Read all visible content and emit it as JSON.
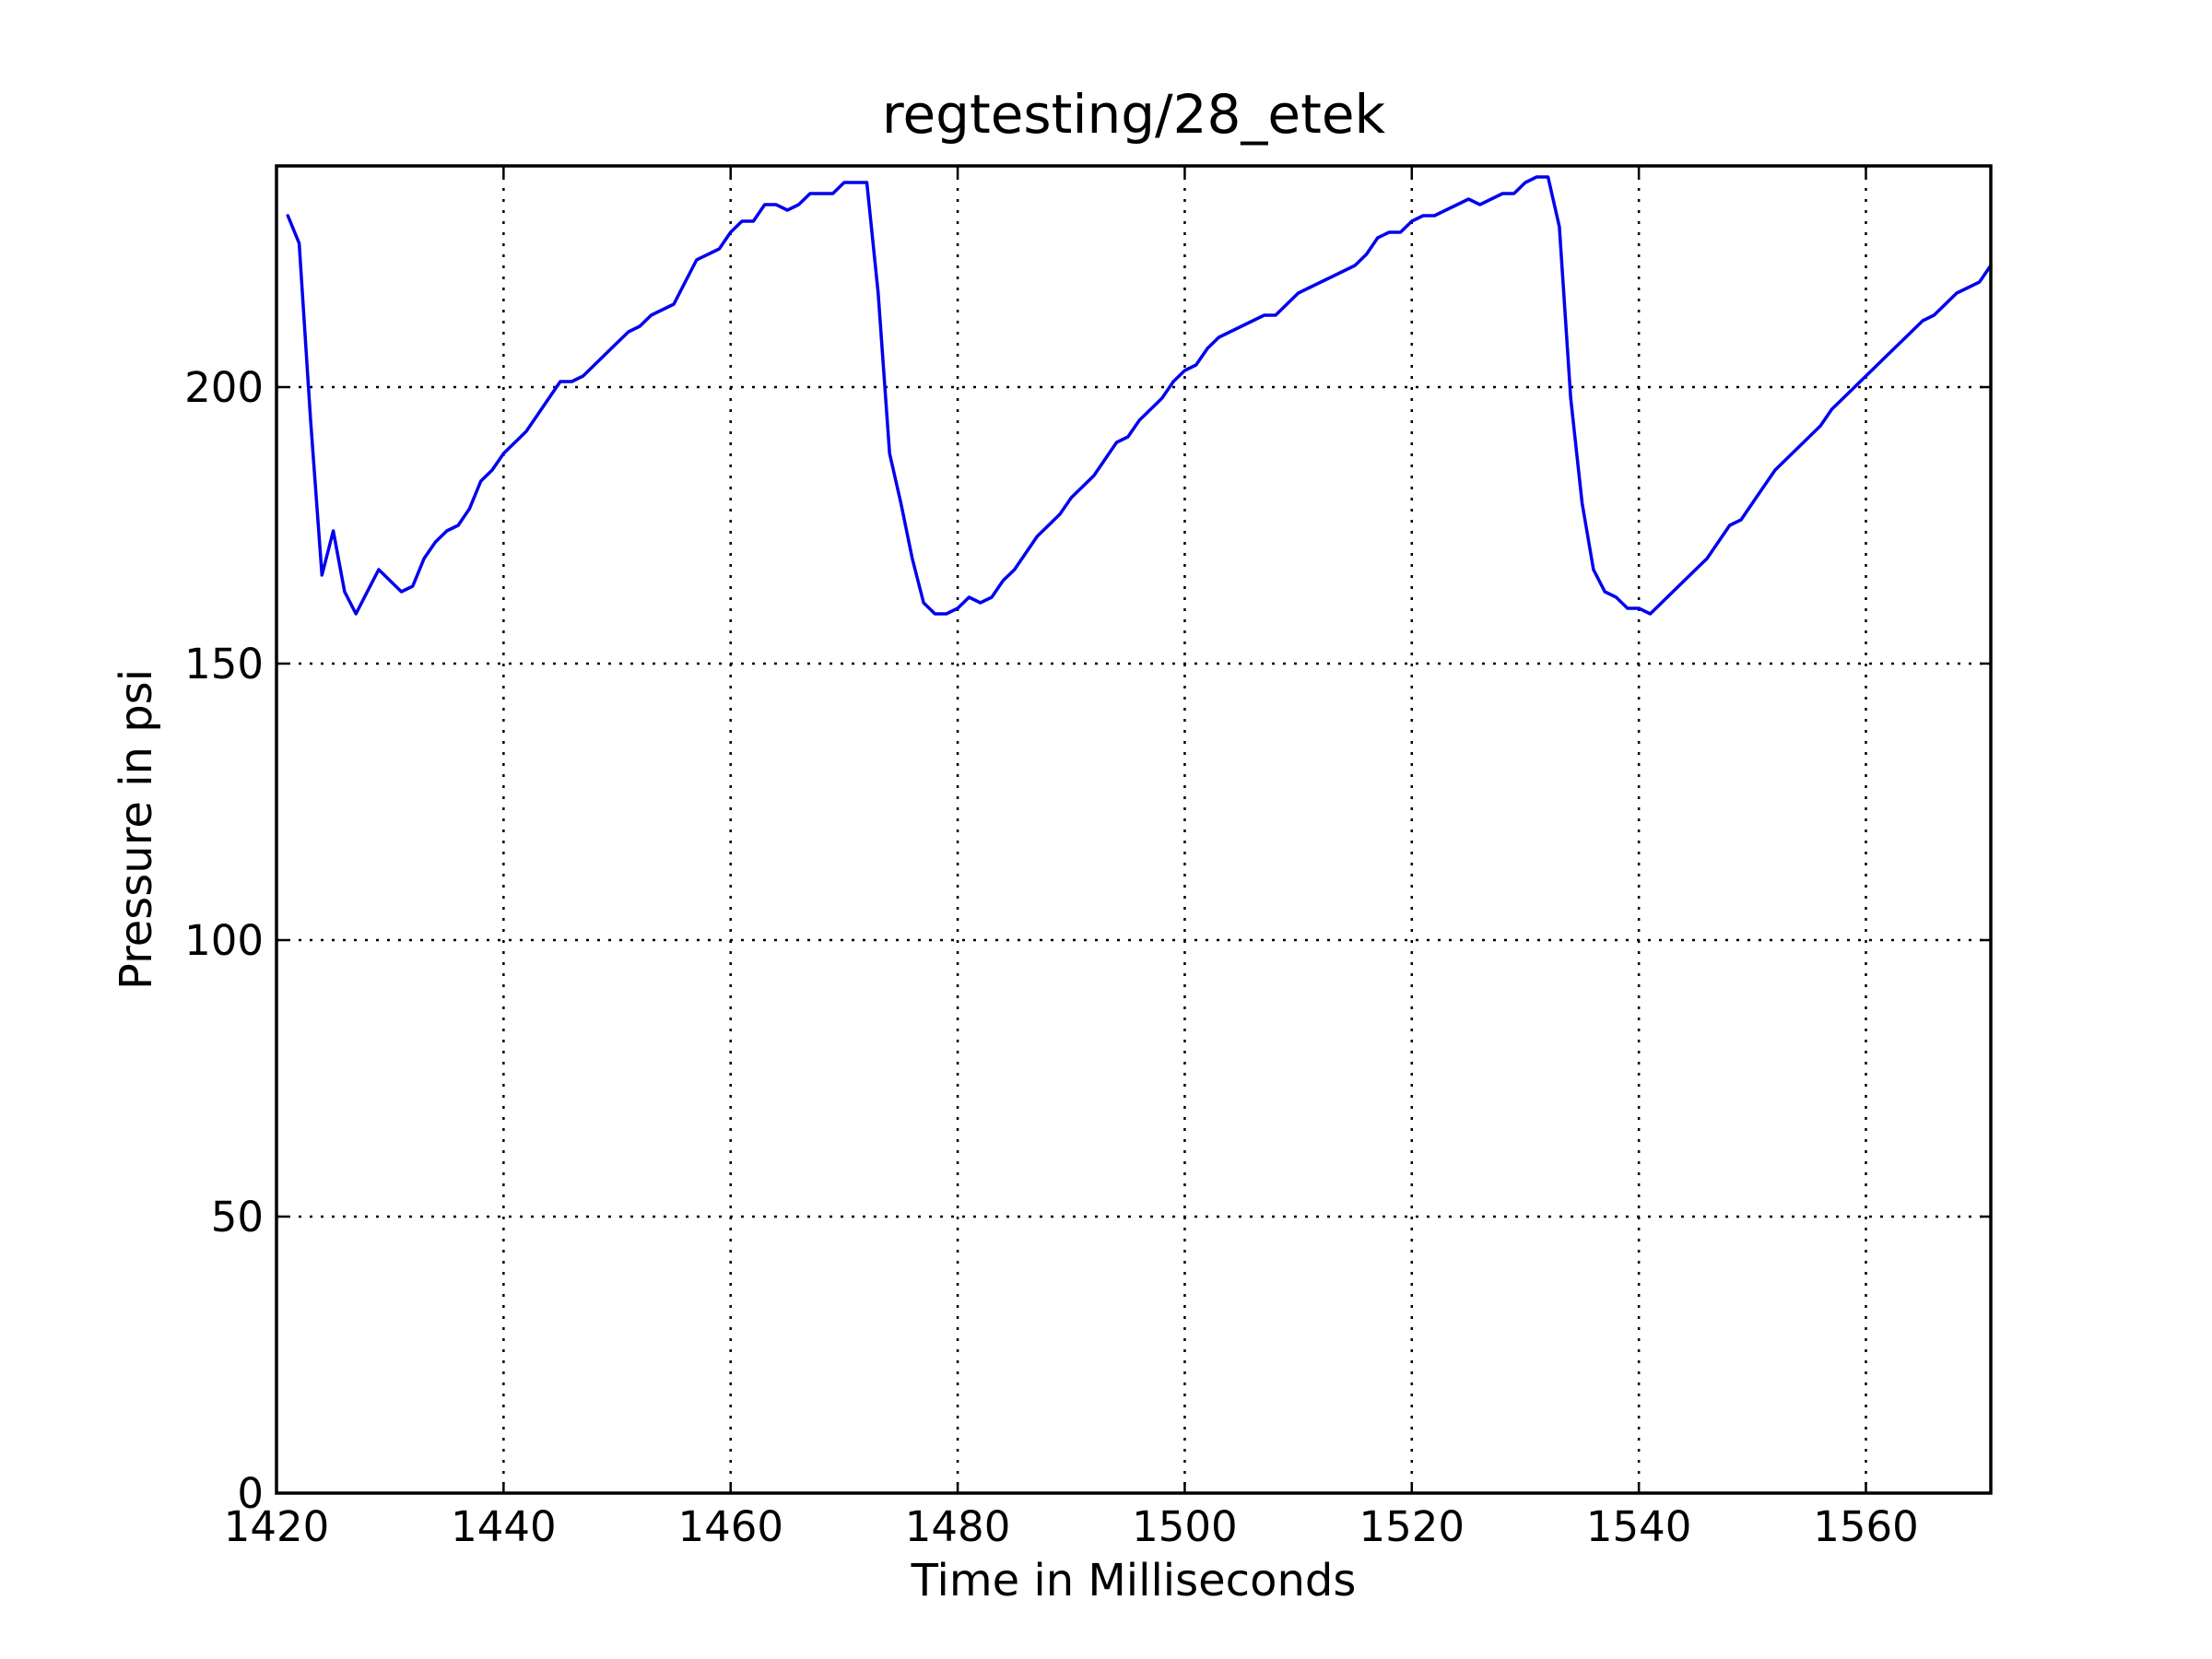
{
  "chart_data": {
    "type": "line",
    "title": "regtesting/28_etek",
    "xlabel": "Time in Milliseconds",
    "ylabel": "Pressure in psi",
    "xlim": [
      1420,
      1571
    ],
    "ylim": [
      0,
      240
    ],
    "xticks": [
      1420,
      1440,
      1460,
      1480,
      1500,
      1520,
      1540,
      1560
    ],
    "yticks": [
      0,
      50,
      100,
      150,
      200
    ],
    "grid": true,
    "line_color": "#0000ee",
    "series": [
      {
        "points": [
          [
            1421,
            231
          ],
          [
            1422,
            226
          ],
          [
            1423,
            194
          ],
          [
            1424,
            166
          ],
          [
            1425,
            174
          ],
          [
            1426,
            163
          ],
          [
            1427,
            159
          ],
          [
            1428,
            163
          ],
          [
            1429,
            167
          ],
          [
            1430,
            165
          ],
          [
            1431,
            163
          ],
          [
            1432,
            164
          ],
          [
            1433,
            169
          ],
          [
            1434,
            172
          ],
          [
            1435,
            174
          ],
          [
            1436,
            175
          ],
          [
            1437,
            178
          ],
          [
            1438,
            183
          ],
          [
            1439,
            185
          ],
          [
            1440,
            188
          ],
          [
            1441,
            190
          ],
          [
            1442,
            192
          ],
          [
            1443,
            195
          ],
          [
            1444,
            198
          ],
          [
            1445,
            201
          ],
          [
            1446,
            201
          ],
          [
            1447,
            202
          ],
          [
            1448,
            204
          ],
          [
            1449,
            206
          ],
          [
            1450,
            208
          ],
          [
            1451,
            210
          ],
          [
            1452,
            211
          ],
          [
            1453,
            213
          ],
          [
            1454,
            214
          ],
          [
            1455,
            215
          ],
          [
            1456,
            219
          ],
          [
            1457,
            223
          ],
          [
            1458,
            224
          ],
          [
            1459,
            225
          ],
          [
            1460,
            228
          ],
          [
            1461,
            230
          ],
          [
            1462,
            230
          ],
          [
            1463,
            233
          ],
          [
            1464,
            233
          ],
          [
            1465,
            232
          ],
          [
            1466,
            233
          ],
          [
            1467,
            235
          ],
          [
            1468,
            235
          ],
          [
            1469,
            235
          ],
          [
            1470,
            237
          ],
          [
            1471,
            237
          ],
          [
            1472,
            237
          ],
          [
            1473,
            217
          ],
          [
            1474,
            188
          ],
          [
            1475,
            179
          ],
          [
            1476,
            169
          ],
          [
            1477,
            161
          ],
          [
            1478,
            159
          ],
          [
            1479,
            159
          ],
          [
            1480,
            160
          ],
          [
            1481,
            162
          ],
          [
            1482,
            161
          ],
          [
            1483,
            162
          ],
          [
            1484,
            165
          ],
          [
            1485,
            167
          ],
          [
            1486,
            170
          ],
          [
            1487,
            173
          ],
          [
            1488,
            175
          ],
          [
            1489,
            177
          ],
          [
            1490,
            180
          ],
          [
            1491,
            182
          ],
          [
            1492,
            184
          ],
          [
            1493,
            187
          ],
          [
            1494,
            190
          ],
          [
            1495,
            191
          ],
          [
            1496,
            194
          ],
          [
            1497,
            196
          ],
          [
            1498,
            198
          ],
          [
            1499,
            201
          ],
          [
            1500,
            203
          ],
          [
            1501,
            204
          ],
          [
            1502,
            207
          ],
          [
            1503,
            209
          ],
          [
            1504,
            210
          ],
          [
            1505,
            211
          ],
          [
            1506,
            212
          ],
          [
            1507,
            213
          ],
          [
            1508,
            213
          ],
          [
            1509,
            215
          ],
          [
            1510,
            217
          ],
          [
            1511,
            218
          ],
          [
            1512,
            219
          ],
          [
            1513,
            220
          ],
          [
            1514,
            221
          ],
          [
            1515,
            222
          ],
          [
            1516,
            224
          ],
          [
            1517,
            227
          ],
          [
            1518,
            228
          ],
          [
            1519,
            228
          ],
          [
            1520,
            230
          ],
          [
            1521,
            231
          ],
          [
            1522,
            231
          ],
          [
            1523,
            232
          ],
          [
            1524,
            233
          ],
          [
            1525,
            234
          ],
          [
            1526,
            233
          ],
          [
            1527,
            234
          ],
          [
            1528,
            235
          ],
          [
            1529,
            235
          ],
          [
            1530,
            237
          ],
          [
            1531,
            238
          ],
          [
            1532,
            238
          ],
          [
            1533,
            229
          ],
          [
            1534,
            198
          ],
          [
            1535,
            179
          ],
          [
            1536,
            167
          ],
          [
            1537,
            163
          ],
          [
            1538,
            162
          ],
          [
            1539,
            160
          ],
          [
            1540,
            160
          ],
          [
            1541,
            159
          ],
          [
            1542,
            161
          ],
          [
            1543,
            163
          ],
          [
            1544,
            165
          ],
          [
            1545,
            167
          ],
          [
            1546,
            169
          ],
          [
            1547,
            172
          ],
          [
            1548,
            175
          ],
          [
            1549,
            176
          ],
          [
            1550,
            179
          ],
          [
            1551,
            182
          ],
          [
            1552,
            185
          ],
          [
            1553,
            187
          ],
          [
            1554,
            189
          ],
          [
            1555,
            191
          ],
          [
            1556,
            193
          ],
          [
            1557,
            196
          ],
          [
            1558,
            198
          ],
          [
            1559,
            200
          ],
          [
            1560,
            202
          ],
          [
            1561,
            204
          ],
          [
            1562,
            206
          ],
          [
            1563,
            208
          ],
          [
            1564,
            210
          ],
          [
            1565,
            212
          ],
          [
            1566,
            213
          ],
          [
            1567,
            215
          ],
          [
            1568,
            217
          ],
          [
            1569,
            218
          ],
          [
            1570,
            219
          ],
          [
            1571,
            222
          ]
        ]
      }
    ]
  }
}
